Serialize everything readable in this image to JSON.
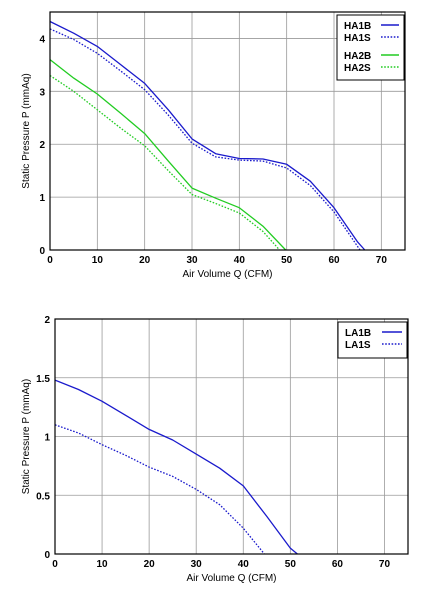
{
  "chart_data": [
    {
      "type": "line",
      "title": "",
      "xlabel": "Air Volume Q (CFM)",
      "ylabel": "Static Pressure P (mmAq)",
      "xlim": [
        0,
        75
      ],
      "ylim": [
        0,
        4.5
      ],
      "xticks": [
        "0",
        "10",
        "20",
        "30",
        "40",
        "50",
        "60",
        "70"
      ],
      "yticks": [
        "0",
        "1",
        "2",
        "3",
        "4"
      ],
      "grid": true,
      "legend_position": "top-right",
      "legend_groups": [
        [
          "HA1B",
          "HA1S"
        ],
        [
          "HA2B",
          "HA2S"
        ]
      ],
      "series": [
        {
          "name": "HA1B",
          "color": "#1a1acc",
          "style": "solid",
          "x": [
            0,
            5,
            10,
            15,
            20,
            25,
            30,
            35,
            40,
            45,
            50,
            55,
            60,
            65,
            66.5
          ],
          "y": [
            4.32,
            4.1,
            3.85,
            3.5,
            3.15,
            2.65,
            2.1,
            1.82,
            1.73,
            1.72,
            1.62,
            1.3,
            0.8,
            0.15,
            0
          ]
        },
        {
          "name": "HA1S",
          "color": "#1a1acc",
          "style": "dotted",
          "x": [
            0,
            5,
            10,
            15,
            20,
            25,
            30,
            35,
            40,
            45,
            50,
            55,
            60,
            65.5
          ],
          "y": [
            4.18,
            3.98,
            3.72,
            3.38,
            3.03,
            2.55,
            2.02,
            1.76,
            1.7,
            1.68,
            1.55,
            1.22,
            0.72,
            0
          ]
        },
        {
          "name": "HA2B",
          "color": "#22cc22",
          "style": "solid",
          "x": [
            0,
            5,
            10,
            15,
            20,
            25,
            30,
            35,
            40,
            45,
            49.8
          ],
          "y": [
            3.6,
            3.25,
            2.95,
            2.58,
            2.2,
            1.68,
            1.17,
            0.98,
            0.8,
            0.45,
            0
          ]
        },
        {
          "name": "HA2S",
          "color": "#22cc22",
          "style": "dotted",
          "x": [
            0,
            5,
            10,
            15,
            20,
            25,
            30,
            35,
            40,
            45,
            48.5
          ],
          "y": [
            3.3,
            3.0,
            2.65,
            2.3,
            1.97,
            1.5,
            1.05,
            0.88,
            0.7,
            0.35,
            0
          ]
        }
      ]
    },
    {
      "type": "line",
      "title": "",
      "xlabel": "Air Volume Q (CFM)",
      "ylabel": "Static Pressure P (mmAq)",
      "xlim": [
        0,
        75
      ],
      "ylim": [
        0,
        2
      ],
      "xticks": [
        "0",
        "10",
        "20",
        "30",
        "40",
        "50",
        "60",
        "70"
      ],
      "yticks": [
        "0",
        "0.5",
        "1",
        "1.5",
        "2"
      ],
      "grid": true,
      "legend_position": "top-right",
      "legend_groups": [
        [
          "LA1B",
          "LA1S"
        ]
      ],
      "series": [
        {
          "name": "LA1B",
          "color": "#1a1acc",
          "style": "solid",
          "x": [
            0,
            5,
            10,
            15,
            20,
            25,
            30,
            35,
            40,
            45,
            50,
            51.5
          ],
          "y": [
            1.48,
            1.4,
            1.3,
            1.18,
            1.06,
            0.97,
            0.85,
            0.73,
            0.58,
            0.32,
            0.05,
            0
          ]
        },
        {
          "name": "LA1S",
          "color": "#1a1acc",
          "style": "dotted",
          "x": [
            0,
            5,
            10,
            15,
            20,
            25,
            30,
            35,
            40,
            44.5
          ],
          "y": [
            1.1,
            1.03,
            0.93,
            0.84,
            0.74,
            0.66,
            0.55,
            0.42,
            0.22,
            0
          ]
        }
      ]
    }
  ]
}
